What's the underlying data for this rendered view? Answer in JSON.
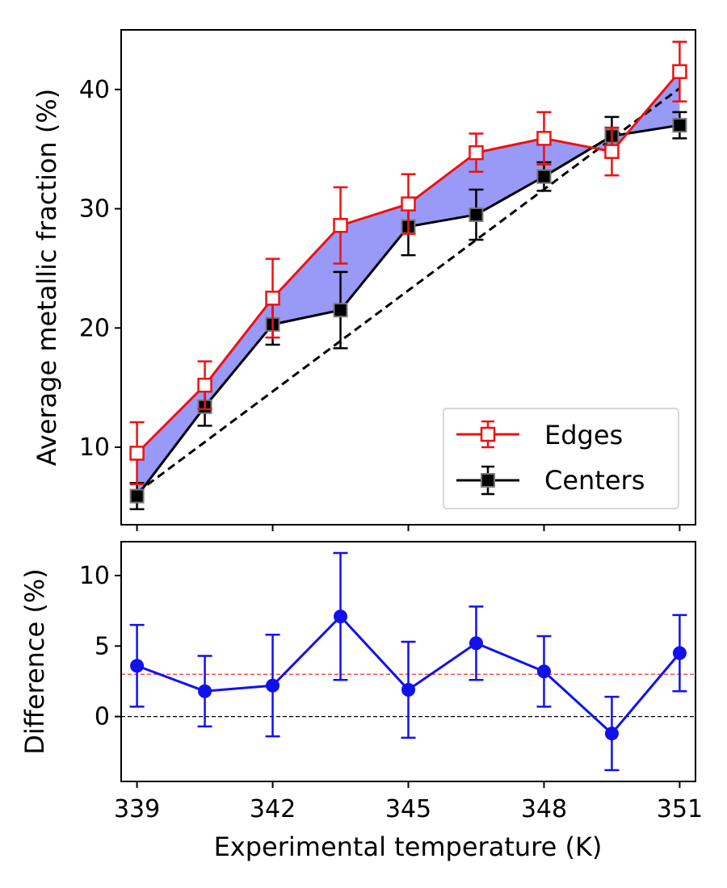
{
  "chart_data": [
    {
      "type": "line",
      "panel": "top",
      "xlabel": "",
      "ylabel": "Average metallic fraction (%)",
      "xlim": [
        338.65,
        351.35
      ],
      "ylim": [
        3.5,
        45.0
      ],
      "xticks": [
        339,
        342,
        345,
        348,
        351
      ],
      "yticks": [
        10,
        20,
        30,
        40
      ],
      "ytick_labels": [
        "10",
        "20",
        "30",
        "40"
      ],
      "x": [
        339,
        340.5,
        342,
        343.5,
        345,
        346.5,
        348,
        349.5,
        351
      ],
      "series": [
        {
          "name": "Edges",
          "color": "#ee1111",
          "marker": "open-square",
          "values": [
            9.5,
            15.2,
            22.5,
            28.6,
            30.4,
            34.7,
            35.9,
            34.8,
            41.5
          ],
          "err": [
            2.6,
            2.0,
            3.3,
            3.2,
            2.5,
            1.6,
            2.2,
            2.0,
            2.5
          ]
        },
        {
          "name": "Centers",
          "color": "#000000",
          "marker": "filled-square",
          "values": [
            5.9,
            13.4,
            20.3,
            21.5,
            28.5,
            29.5,
            32.7,
            36.1,
            37.0
          ],
          "err": [
            1.1,
            1.6,
            1.7,
            3.2,
            2.4,
            2.1,
            1.2,
            1.6,
            1.1
          ]
        }
      ],
      "fill_between": {
        "upper": "Edges",
        "lower": "Centers",
        "color": "#9999f7"
      },
      "reference_line": {
        "style": "dashed",
        "color": "#000000",
        "x": [
          339,
          351
        ],
        "y": [
          6.2,
          40.1
        ]
      },
      "legend": {
        "entries": [
          "Edges",
          "Centers"
        ],
        "position": "lower-right"
      }
    },
    {
      "type": "line",
      "panel": "bottom",
      "xlabel": "Experimental temperature (K)",
      "ylabel": "Difference (%)",
      "xlim": [
        338.65,
        351.35
      ],
      "ylim": [
        -4.6,
        12.4
      ],
      "xticks": [
        339,
        342,
        345,
        348,
        351
      ],
      "xtick_labels": [
        "339",
        "342",
        "345",
        "348",
        "351"
      ],
      "yticks": [
        0,
        5,
        10
      ],
      "ytick_labels": [
        "0",
        "5",
        "10"
      ],
      "x": [
        339,
        340.5,
        342,
        343.5,
        345,
        346.5,
        348,
        349.5,
        351
      ],
      "series": [
        {
          "name": "Difference",
          "color": "#1111ee",
          "marker": "filled-circle",
          "values": [
            3.6,
            1.8,
            2.2,
            7.1,
            1.9,
            5.2,
            3.2,
            -1.2,
            4.5
          ],
          "err": [
            2.9,
            2.5,
            3.6,
            4.5,
            3.4,
            2.6,
            2.5,
            2.6,
            2.7
          ]
        }
      ],
      "reference_lines": [
        {
          "y": 3.0,
          "style": "dashed",
          "color": "#ee3333"
        },
        {
          "y": 0.0,
          "style": "dashed",
          "color": "#000000"
        }
      ]
    }
  ]
}
